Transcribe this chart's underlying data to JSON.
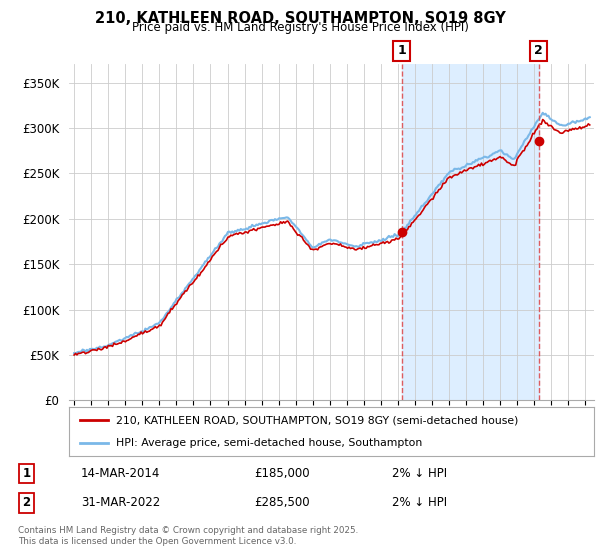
{
  "title": "210, KATHLEEN ROAD, SOUTHAMPTON, SO19 8GY",
  "subtitle": "Price paid vs. HM Land Registry's House Price Index (HPI)",
  "ylim": [
    0,
    370000
  ],
  "yticks": [
    0,
    50000,
    100000,
    150000,
    200000,
    250000,
    300000,
    350000
  ],
  "ytick_labels": [
    "£0",
    "£50K",
    "£100K",
    "£150K",
    "£200K",
    "£250K",
    "£300K",
    "£350K"
  ],
  "hpi_color": "#7ab8e8",
  "price_color": "#cc0000",
  "shade_color": "#ddeeff",
  "annotation1_date": "14-MAR-2014",
  "annotation1_price": 185000,
  "annotation1_label": "2% ↓ HPI",
  "annotation2_date": "31-MAR-2022",
  "annotation2_price": 285500,
  "annotation2_label": "2% ↓ HPI",
  "sale1_year": 2014.21,
  "sale2_year": 2022.25,
  "legend_line1": "210, KATHLEEN ROAD, SOUTHAMPTON, SO19 8GY (semi-detached house)",
  "legend_line2": "HPI: Average price, semi-detached house, Southampton",
  "footer": "Contains HM Land Registry data © Crown copyright and database right 2025.\nThis data is licensed under the Open Government Licence v3.0.",
  "background_color": "#ffffff",
  "grid_color": "#cccccc"
}
